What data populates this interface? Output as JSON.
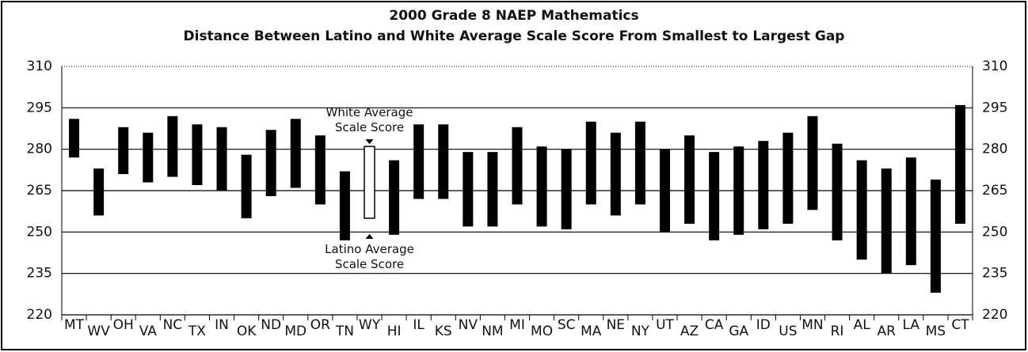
{
  "chart_data": {
    "type": "range_bar",
    "title": "2000 Grade 8 NAEP Mathematics",
    "subtitle": "Distance Between Latino and White Average Scale Score From Smallest to Largest Gap",
    "categories": [
      "MT",
      "WV",
      "OH",
      "VA",
      "NC",
      "TX",
      "IN",
      "OK",
      "ND",
      "MD",
      "OR",
      "TN",
      "WY",
      "HI",
      "IL",
      "KS",
      "NV",
      "NM",
      "MI",
      "MO",
      "SC",
      "MA",
      "NE",
      "NY",
      "UT",
      "AZ",
      "CA",
      "GA",
      "ID",
      "US",
      "MN",
      "RI",
      "AL",
      "AR",
      "LA",
      "MS",
      "CT"
    ],
    "series": [
      {
        "name": "White Average Scale Score",
        "color": "#000000",
        "values": [
          291,
          273,
          288,
          286,
          292,
          289,
          288,
          278,
          287,
          291,
          285,
          272,
          281,
          276,
          289,
          289,
          279,
          279,
          288,
          281,
          280,
          290,
          286,
          290,
          280,
          285,
          279,
          281,
          283,
          286,
          292,
          282,
          276,
          273,
          277,
          269,
          296
        ]
      },
      {
        "name": "Latino Average Scale Score",
        "color": "#000000",
        "values": [
          277,
          256,
          271,
          268,
          270,
          267,
          265,
          255,
          263,
          266,
          260,
          247,
          255,
          249,
          262,
          262,
          252,
          252,
          260,
          252,
          251,
          260,
          256,
          260,
          250,
          253,
          247,
          249,
          251,
          253,
          258,
          247,
          240,
          235,
          238,
          228,
          253
        ]
      }
    ],
    "highlight": "WY",
    "ylim": [
      220,
      310
    ],
    "yticks": [
      220,
      235,
      250,
      265,
      280,
      295,
      310
    ],
    "y2lim": [
      220,
      310
    ],
    "y2ticks": [
      220,
      235,
      250,
      265,
      280,
      295,
      310
    ],
    "grid": true
  }
}
